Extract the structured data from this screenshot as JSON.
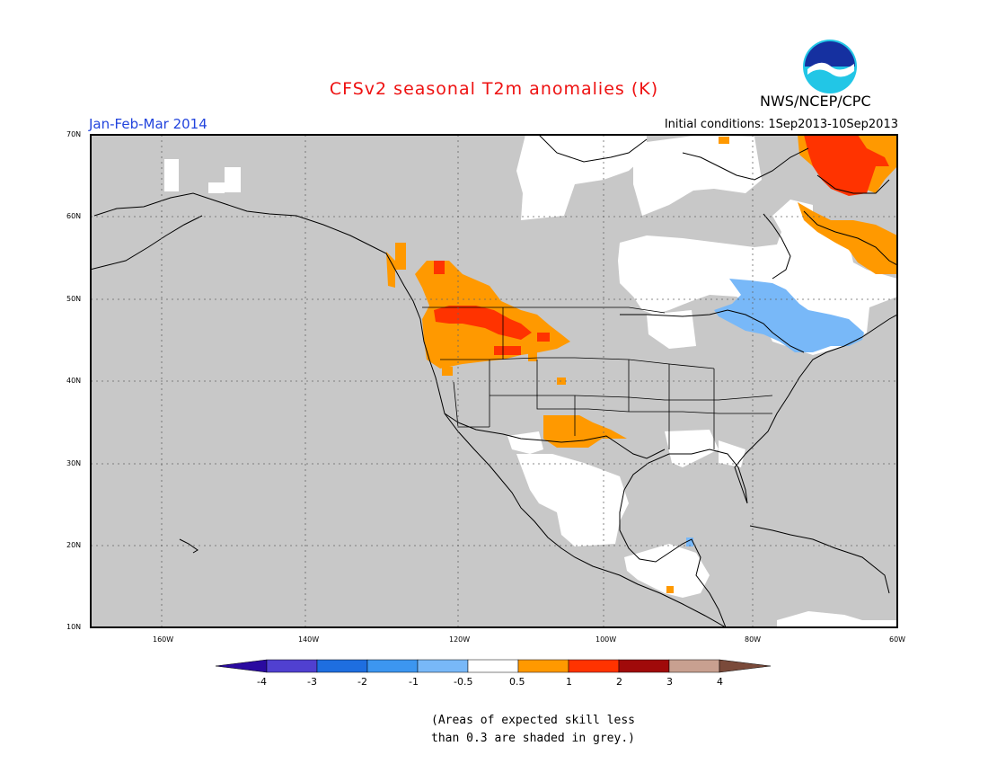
{
  "header": {
    "title": "CFSv2 seasonal T2m anomalies (K)",
    "org": "NWS/NCEP/CPC",
    "period": "Jan-Feb-Mar 2014",
    "initial_conditions": "Initial conditions: 1Sep2013-10Sep2013",
    "logo_text": "NOAA"
  },
  "map": {
    "lat_labels": [
      "70N",
      "60N",
      "50N",
      "40N",
      "30N",
      "20N",
      "10N"
    ],
    "lon_labels": [
      "160W",
      "140W",
      "120W",
      "100W",
      "80W",
      "60W"
    ],
    "background_color": "#c8c8c8",
    "no_skill_color": "#c8c8c8"
  },
  "colorbar": {
    "labels": [
      "-4",
      "-3",
      "-2",
      "-1",
      "-0.5",
      "0.5",
      "1",
      "2",
      "3",
      "4"
    ],
    "colors": [
      "#2a0aa0",
      "#5040d0",
      "#1e6ee0",
      "#3c96f0",
      "#78b8f8",
      "#ffffff",
      "#ff9900",
      "#ff3300",
      "#a00a0a",
      "#c8a090",
      "#7a4a3a"
    ]
  },
  "note": {
    "line1": "(Areas of expected skill less",
    "line2": "than 0.3 are shaded in grey.)"
  }
}
